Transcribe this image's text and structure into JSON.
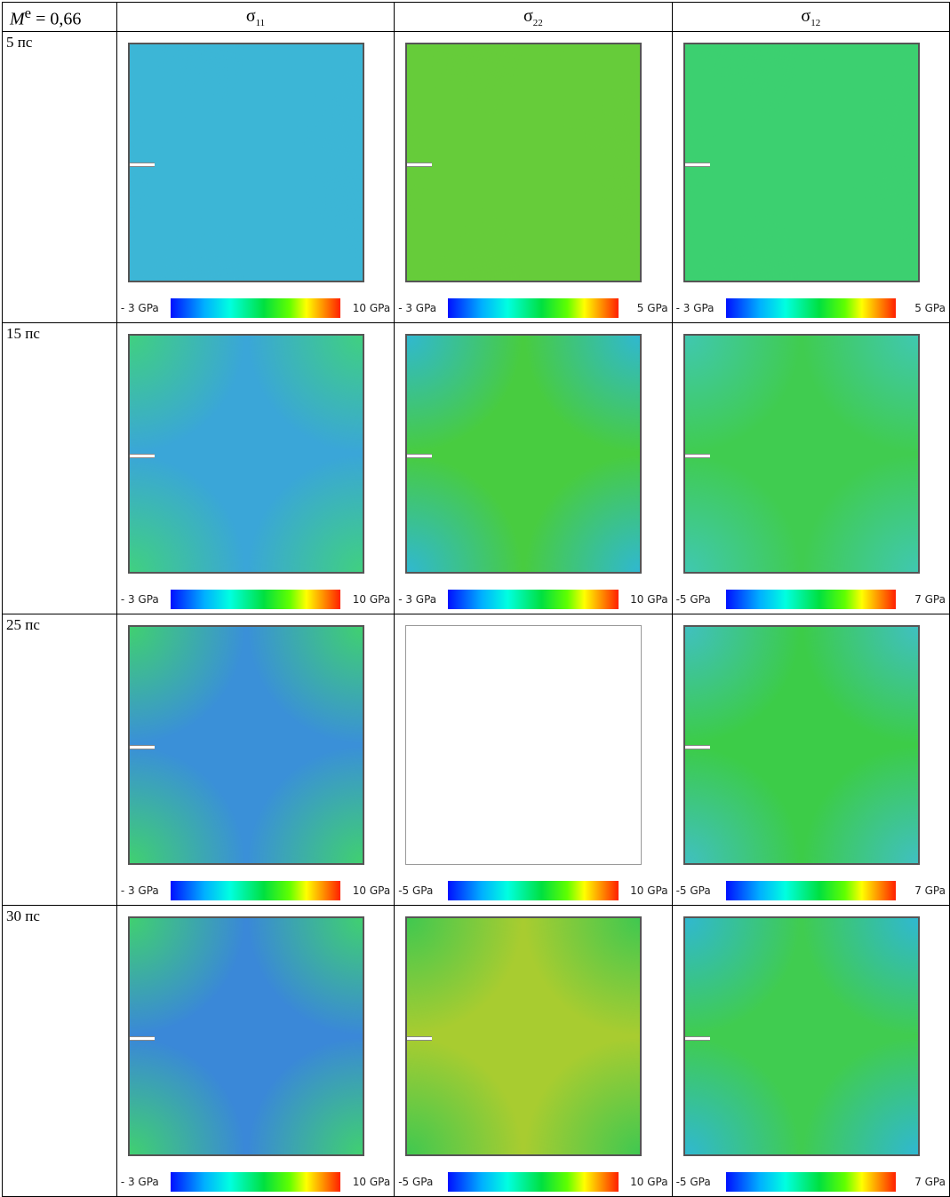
{
  "header": {
    "param": "M",
    "param_sup": "e",
    "param_value": "= 0,66",
    "columns": [
      {
        "sym": "σ",
        "sub": "11"
      },
      {
        "sym": "σ",
        "sub": "22"
      },
      {
        "sym": "σ",
        "sub": "12"
      }
    ]
  },
  "rows": [
    {
      "label": "5 пс",
      "cells": [
        {
          "min": "- 3 GPa",
          "max": "10 GPa",
          "color": "#3cb6d6",
          "corner": "#3cb6d6"
        },
        {
          "min": "- 3 GPa",
          "max": "5 GPa",
          "color": "#66cc3a",
          "corner": "#66cc3a"
        },
        {
          "min": "- 3 GPa",
          "max": "5 GPa",
          "color": "#3cd070",
          "corner": "#3cd070"
        }
      ]
    },
    {
      "label": "15 пс",
      "cells": [
        {
          "min": "- 3 GPa",
          "max": "10 GPa",
          "color": "#3aa6d8",
          "corner": "#40d080"
        },
        {
          "min": "- 3 GPa",
          "max": "10 GPa",
          "color": "#48cc40",
          "corner": "#30b8d0"
        },
        {
          "min": "-5 GPa",
          "max": "7 GPa",
          "color": "#40cc50",
          "corner": "#40c8b0"
        }
      ]
    },
    {
      "label": "25 пс",
      "cells": [
        {
          "min": "- 3 GPa",
          "max": "10 GPa",
          "color": "#3a90d8",
          "corner": "#40d070"
        },
        {
          "min": "-5 GPa",
          "max": "10  GPa",
          "color": "#ffffff",
          "corner": "#ffffff"
        },
        {
          "min": "-5 GPa",
          "max": "7 GPa",
          "color": "#3ccc48",
          "corner": "#40c0c0"
        }
      ]
    },
    {
      "label": "30 пс",
      "cells": [
        {
          "min": "- 3 GPa",
          "max": "10 GPa",
          "color": "#3a88d8",
          "corner": "#40d070"
        },
        {
          "min": "-5 GPa",
          "max": "10  GPa",
          "color": "#a8cc30",
          "corner": "#40c850"
        },
        {
          "min": "-5 GPa",
          "max": "7 GPa",
          "color": "#40cc50",
          "corner": "#30b8d0"
        }
      ]
    }
  ]
}
